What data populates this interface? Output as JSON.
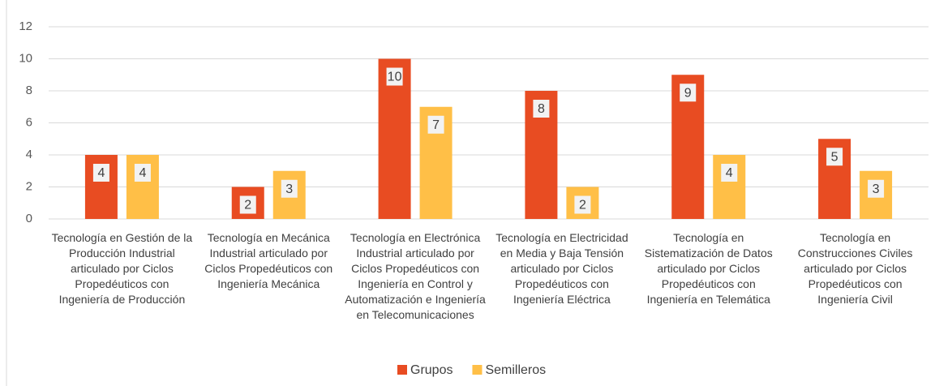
{
  "chart_data": {
    "type": "bar",
    "categories": [
      "Tecnología en Gestión de la Producción Industrial articulado por Ciclos Propedéuticos con Ingeniería de Producción",
      "Tecnología en Mecánica Industrial articulado por Ciclos Propedéuticos con Ingeniería Mecánica",
      "Tecnología en Electrónica Industrial articulado por Ciclos Propedéuticos con Ingeniería en Control y Automatización e Ingeniería en Telecomunicaciones",
      "Tecnología en Electricidad en Media y Baja Tensión articulado por Ciclos Propedéuticos con Ingeniería Eléctrica",
      "Tecnología en Sistematización de Datos articulado por Ciclos Propedéuticos con Ingeniería en Telemática",
      "Tecnología en Construcciones Civiles articulado por Ciclos Propedéuticos con Ingeniería Civil"
    ],
    "series": [
      {
        "name": "Grupos",
        "color": "#e84c22",
        "values": [
          4,
          2,
          10,
          8,
          9,
          5
        ]
      },
      {
        "name": "Semilleros",
        "color": "#ffbf47",
        "values": [
          4,
          3,
          7,
          2,
          4,
          3
        ]
      }
    ],
    "ylim": [
      0,
      12
    ],
    "yticks": [
      0,
      2,
      4,
      6,
      8,
      10,
      12
    ],
    "grid": true,
    "legend": "bottom"
  }
}
